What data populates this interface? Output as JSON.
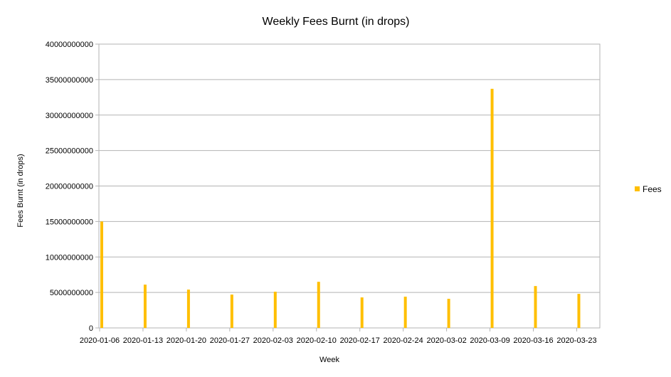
{
  "chart_data": {
    "type": "bar",
    "title": "Weekly Fees Burnt (in drops)",
    "xlabel": "Week",
    "ylabel": "Fees Burnt (in drops)",
    "ylim": [
      0,
      40000000000
    ],
    "yticks": [
      0,
      5000000000,
      10000000000,
      15000000000,
      20000000000,
      25000000000,
      30000000000,
      35000000000,
      40000000000
    ],
    "ytick_labels": [
      "0",
      "5000000000",
      "10000000000",
      "15000000000",
      "20000000000",
      "25000000000",
      "30000000000",
      "35000000000",
      "40000000000"
    ],
    "categories": [
      "2020-01-06",
      "2020-01-13",
      "2020-01-20",
      "2020-01-27",
      "2020-02-03",
      "2020-02-10",
      "2020-02-17",
      "2020-02-24",
      "2020-03-02",
      "2020-03-09",
      "2020-03-16",
      "2020-03-23"
    ],
    "series": [
      {
        "name": "Fees",
        "color": "#ffbf00",
        "values": [
          15000000000,
          6100000000,
          5400000000,
          4700000000,
          5100000000,
          6500000000,
          4300000000,
          4400000000,
          4100000000,
          33700000000,
          5900000000,
          4800000000
        ]
      }
    ],
    "grid": true,
    "legend_position": "right"
  }
}
